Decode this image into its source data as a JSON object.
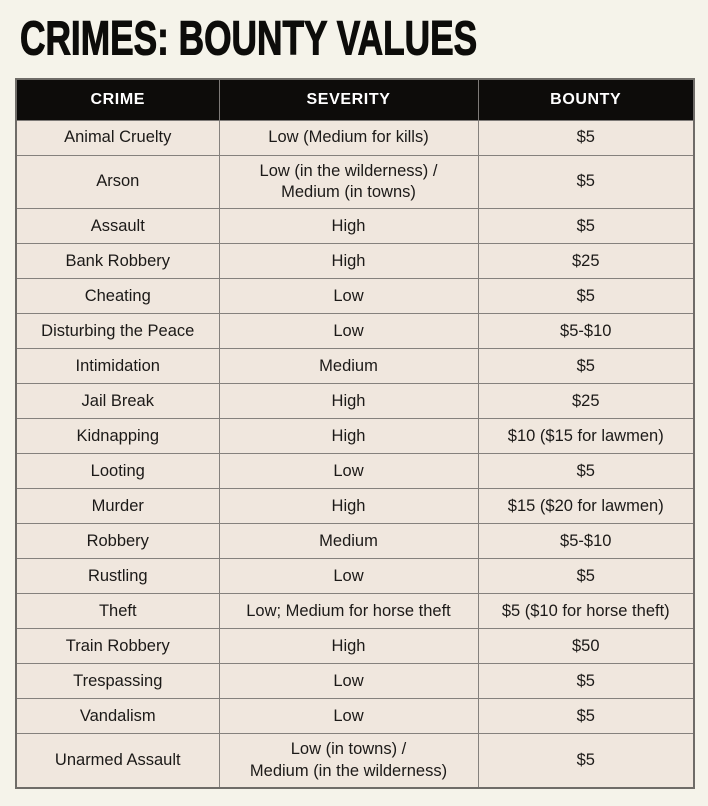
{
  "page": {
    "title": "CRIMES: BOUNTY VALUES"
  },
  "colors": {
    "page_bg": "#f5f3ea",
    "cell_bg": "#f0e7de",
    "header_bg": "#0d0c0a",
    "header_text": "#ffffff",
    "grid_border": "#7d7a77",
    "body_text": "#1c1a18"
  },
  "chart_data": {
    "type": "table",
    "title": "CRIMES: BOUNTY VALUES",
    "columns": [
      "CRIME",
      "SEVERITY",
      "BOUNTY"
    ],
    "rows": [
      [
        "Animal Cruelty",
        "Low (Medium for kills)",
        "$5"
      ],
      [
        "Arson",
        "Low (in the wilderness) /\nMedium (in towns)",
        "$5"
      ],
      [
        "Assault",
        "High",
        "$5"
      ],
      [
        "Bank Robbery",
        "High",
        "$25"
      ],
      [
        "Cheating",
        "Low",
        "$5"
      ],
      [
        "Disturbing the Peace",
        "Low",
        "$5-$10"
      ],
      [
        "Intimidation",
        "Medium",
        "$5"
      ],
      [
        "Jail Break",
        "High",
        "$25"
      ],
      [
        "Kidnapping",
        "High",
        "$10 ($15 for lawmen)"
      ],
      [
        "Looting",
        "Low",
        "$5"
      ],
      [
        "Murder",
        "High",
        "$15 ($20 for lawmen)"
      ],
      [
        "Robbery",
        "Medium",
        "$5-$10"
      ],
      [
        "Rustling",
        "Low",
        "$5"
      ],
      [
        "Theft",
        "Low; Medium for horse theft",
        "$5 ($10 for horse theft)"
      ],
      [
        "Train Robbery",
        "High",
        "$50"
      ],
      [
        "Trespassing",
        "Low",
        "$5"
      ],
      [
        "Vandalism",
        "Low",
        "$5"
      ],
      [
        "Unarmed Assault",
        "Low (in towns) /\nMedium (in the wilderness)",
        "$5"
      ]
    ]
  }
}
